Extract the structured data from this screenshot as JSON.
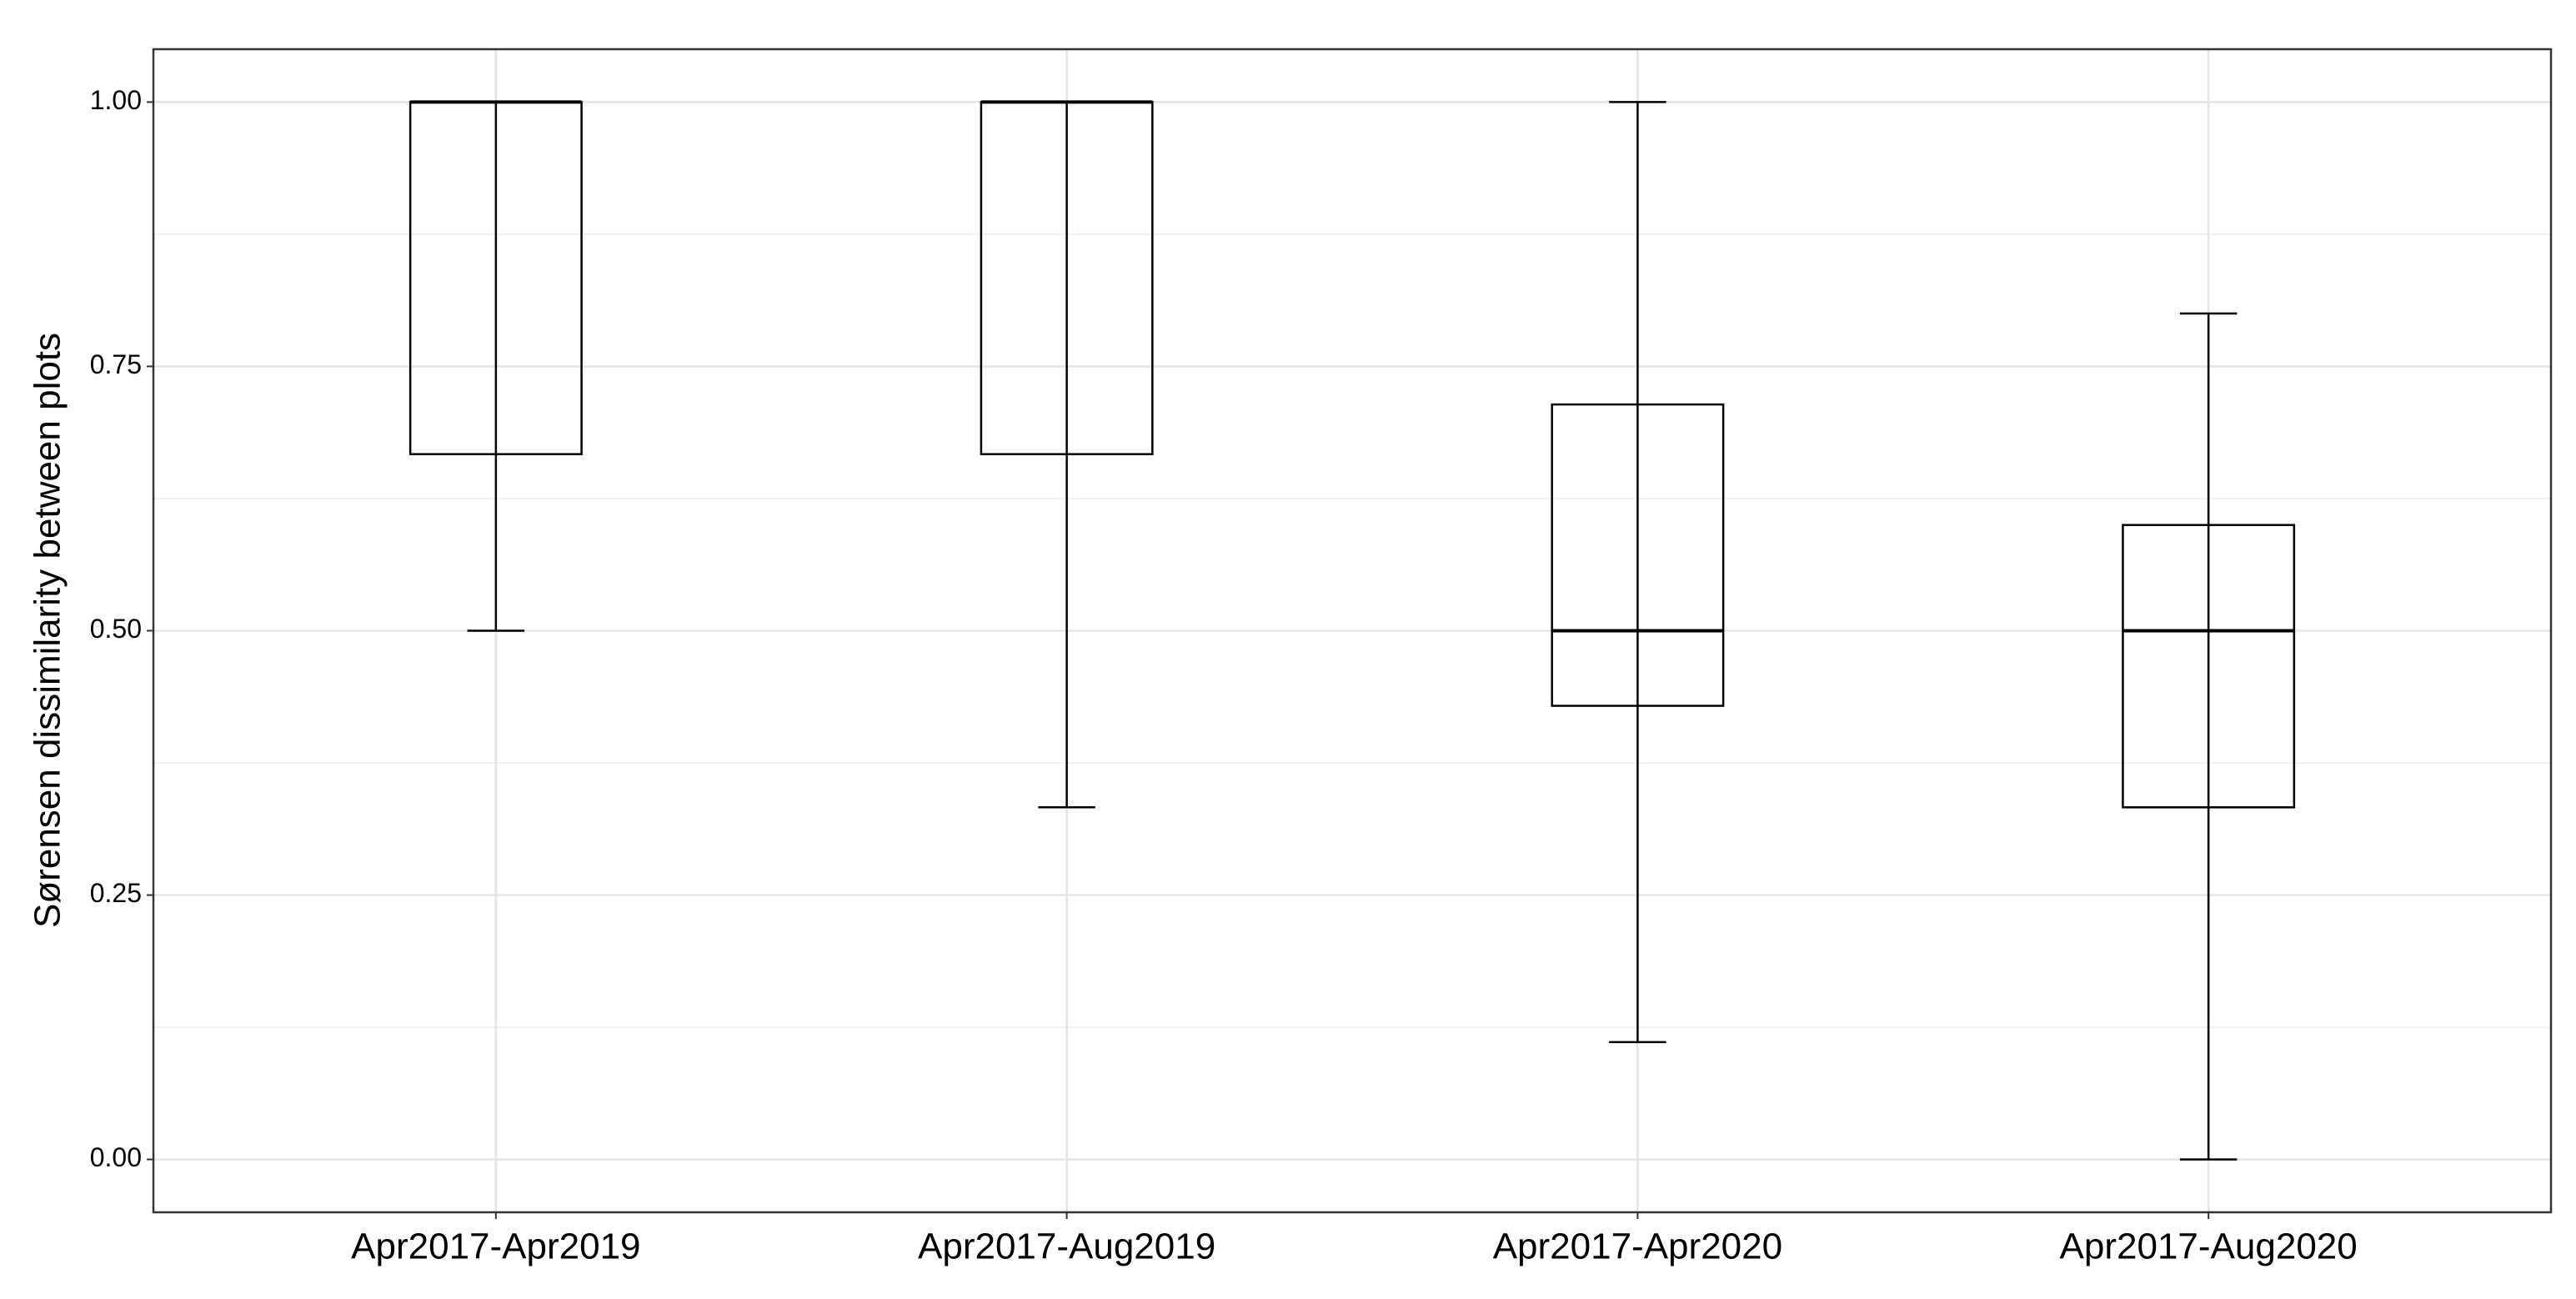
{
  "chart_data": {
    "type": "box",
    "ylabel": "Sørensen dissimilarity between plots",
    "categories": [
      "Apr2017-Apr2019",
      "Apr2017-Aug2019",
      "Apr2017-Apr2020",
      "Apr2017-Aug2020"
    ],
    "boxes": [
      {
        "min": 0.5,
        "q1": 0.667,
        "median": 1.0,
        "q3": 1.0,
        "max": 1.0
      },
      {
        "min": 0.333,
        "q1": 0.667,
        "median": 1.0,
        "q3": 1.0,
        "max": 1.0
      },
      {
        "min": 0.111,
        "q1": 0.429,
        "median": 0.5,
        "q3": 0.714,
        "max": 1.0
      },
      {
        "min": 0.0,
        "q1": 0.333,
        "median": 0.5,
        "q3": 0.6,
        "max": 0.8
      }
    ],
    "color": "#000000",
    "ylim": [
      -0.05,
      1.05
    ],
    "yticks": [
      {
        "value": 0,
        "label": "0.00"
      },
      {
        "value": 0.25,
        "label": "0.25"
      },
      {
        "value": 0.5,
        "label": "0.50"
      },
      {
        "value": 0.75,
        "label": "0.75"
      },
      {
        "value": 1,
        "label": "1.00"
      }
    ],
    "minor_yticks": [
      0.125,
      0.375,
      0.625,
      0.875
    ],
    "grid": true
  }
}
